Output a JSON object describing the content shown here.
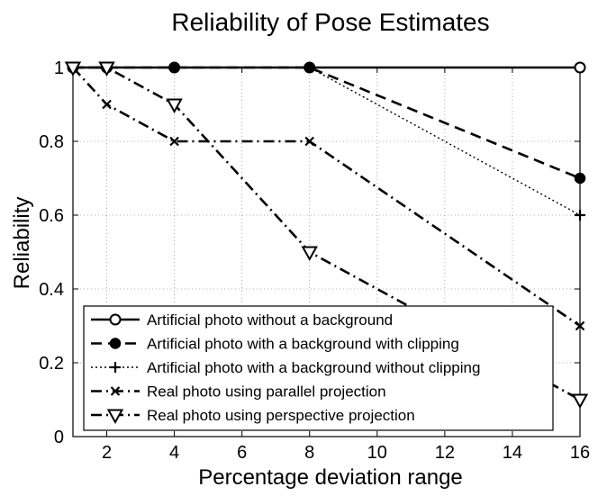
{
  "chart_data": {
    "type": "line",
    "title": "Reliability of Pose Estimates",
    "xlabel": "Percentage deviation range",
    "ylabel": "Reliability",
    "xlim": [
      1,
      16
    ],
    "ylim": [
      0,
      1
    ],
    "xticks": [
      2,
      4,
      6,
      8,
      10,
      12,
      14,
      16
    ],
    "yticks": [
      0,
      0.2,
      0.4,
      0.6,
      0.8,
      1
    ],
    "grid": true,
    "legend_position": "bottom-left",
    "series": [
      {
        "name": "Artificial photo without a background",
        "x": [
          1,
          2,
          4,
          8,
          16
        ],
        "y": [
          1,
          1,
          1,
          1,
          1
        ],
        "linestyle": "solid",
        "marker": "circle"
      },
      {
        "name": "Artificial photo with a background with clipping",
        "x": [
          1,
          2,
          4,
          8,
          16
        ],
        "y": [
          1,
          1,
          1,
          1,
          0.7
        ],
        "linestyle": "dashed",
        "marker": "filled-circle"
      },
      {
        "name": "Artificial photo with a background without clipping",
        "x": [
          1,
          2,
          4,
          8,
          16
        ],
        "y": [
          1,
          1,
          1,
          1,
          0.6
        ],
        "linestyle": "dotted",
        "marker": "plus"
      },
      {
        "name": "Real photo using parallel projection",
        "x": [
          1,
          2,
          4,
          8,
          16
        ],
        "y": [
          1,
          0.9,
          0.8,
          0.8,
          0.3
        ],
        "linestyle": "dashdot",
        "marker": "cross"
      },
      {
        "name": "Real photo using perspective projection",
        "x": [
          1,
          2,
          4,
          8,
          16
        ],
        "y": [
          1,
          1,
          0.9,
          0.5,
          0.1
        ],
        "linestyle": "dashdot",
        "marker": "triangle-down"
      }
    ]
  }
}
